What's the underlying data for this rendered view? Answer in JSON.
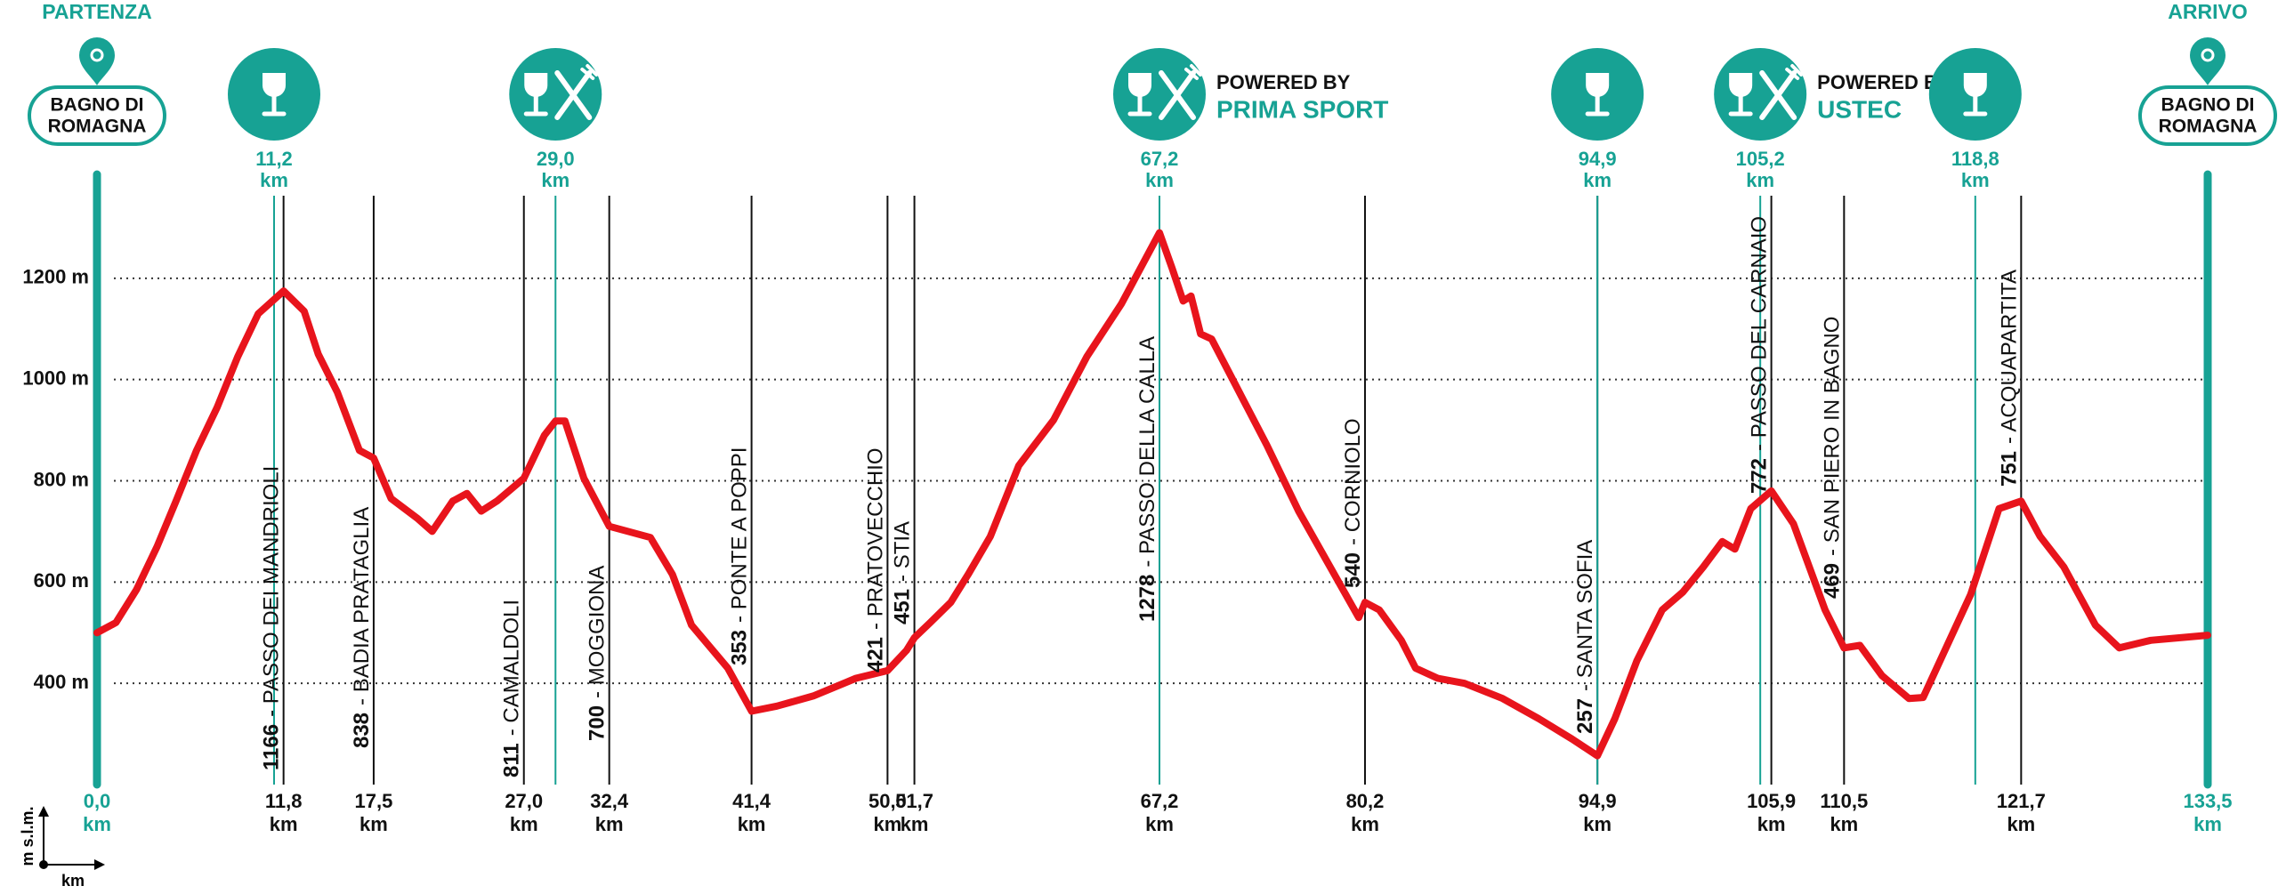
{
  "chart_data": {
    "type": "line",
    "color": "#e8141c",
    "accent": "#17a294",
    "xlim": [
      0,
      133.5
    ],
    "ylim": [
      200,
      1400
    ],
    "grid": true,
    "yticks": [
      {
        "value": 400,
        "label": "400 m"
      },
      {
        "value": 600,
        "label": "600 m"
      },
      {
        "value": 800,
        "label": "800 m"
      },
      {
        "value": 1000,
        "label": "1000 m"
      },
      {
        "value": 1200,
        "label": "1200 m"
      }
    ],
    "xticks": [
      {
        "value": 0,
        "label": "0,0"
      },
      {
        "value": 11.8,
        "label": "11,8"
      },
      {
        "value": 17.5,
        "label": "17,5"
      },
      {
        "value": 27.0,
        "label": "27,0"
      },
      {
        "value": 32.4,
        "label": "32,4"
      },
      {
        "value": 41.4,
        "label": "41,4"
      },
      {
        "value": 50.0,
        "label": "50,0"
      },
      {
        "value": 51.7,
        "label": "51,7"
      },
      {
        "value": 67.2,
        "label": "67,2"
      },
      {
        "value": 80.2,
        "label": "80,2"
      },
      {
        "value": 94.9,
        "label": "94,9"
      },
      {
        "value": 105.9,
        "label": "105,9"
      },
      {
        "value": 110.5,
        "label": "110,5"
      },
      {
        "value": 121.7,
        "label": "121,7"
      },
      {
        "value": 133.5,
        "label": "133,5"
      }
    ],
    "x_unit": "km",
    "y_axis_label": "m s.l.m.",
    "x_axis_label": "km",
    "start": {
      "label": "PARTENZA",
      "place": [
        "BAGNO DI",
        "ROMAGNA"
      ]
    },
    "finish": {
      "label": "ARRIVO",
      "place": [
        "BAGNO DI",
        "ROMAGNA"
      ]
    },
    "waypoints": [
      {
        "elevation": 1166,
        "name": "- PASSO DEI MANDRIOLI"
      },
      {
        "elevation": 838,
        "name": "- BADIA PRATAGLIA"
      },
      {
        "elevation": 811,
        "name": "- CAMALDOLI"
      },
      {
        "elevation": 700,
        "name": "- MOGGIONA"
      },
      {
        "elevation": 353,
        "name": "- PONTE A POPPI"
      },
      {
        "elevation": 421,
        "name": "- PRATOVECCHIO"
      },
      {
        "elevation": 451,
        "name": "- STIA"
      },
      {
        "elevation": 1278,
        "name": "- PASSO DELLA CALLA"
      },
      {
        "elevation": 540,
        "name": "- CORNIOLO"
      },
      {
        "elevation": 257,
        "name": "- SANTA SOFIA"
      },
      {
        "elevation": 772,
        "name": "- PASSO DEL CARNAIO"
      },
      {
        "elevation": 469,
        "name": "- SAN PIERO IN BAGNO"
      },
      {
        "elevation": 751,
        "name": "- ACQUAPARTITA"
      }
    ],
    "refreshments": [
      {
        "km": {
          "value": 11.2,
          "label": "11,2"
        },
        "food": false
      },
      {
        "km": {
          "value": 29.0,
          "label": "29,0"
        },
        "food": true
      },
      {
        "km": {
          "value": 67.2,
          "label": "67,2"
        },
        "food": true,
        "powered_by": "POWERED BY",
        "sponsor": "PRIMA SPORT"
      },
      {
        "km": {
          "value": 94.9,
          "label": "94,9"
        },
        "food": false
      },
      {
        "km": {
          "value": 105.2,
          "label": "105,2"
        },
        "food": true,
        "powered_by": "POWERED BY",
        "sponsor": "USTEC"
      },
      {
        "km": {
          "value": 118.8,
          "label": "118,8"
        },
        "food": false
      }
    ],
    "x": [
      0,
      1.2,
      2.5,
      3.8,
      5,
      6.3,
      7.6,
      8.9,
      10.2,
      11.8,
      13.1,
      14.0,
      15.2,
      16.6,
      17.5,
      18.6,
      20.3,
      21.2,
      22.5,
      23.4,
      24.3,
      25.3,
      27.0,
      28.3,
      29.0,
      29.6,
      30.8,
      32.4,
      35.0,
      36.4,
      37.6,
      39.9,
      41.4,
      43.0,
      45.3,
      48.0,
      50.0,
      51.2,
      51.7,
      52.7,
      54.0,
      55.1,
      56.5,
      58.3,
      60.5,
      62.6,
      64.8,
      67.2,
      68.0,
      68.7,
      69.2,
      69.8,
      70.5,
      72.0,
      74.0,
      76.0,
      79.8,
      80.2,
      81.1,
      82.5,
      83.4,
      84.8,
      86.5,
      88.9,
      91.2,
      93.3,
      94.9,
      96.0,
      97.4,
      99.0,
      100.3,
      101.6,
      102.8,
      103.6,
      104.6,
      105.9,
      107.3,
      109.3,
      110.5,
      111.5,
      112.9,
      114.6,
      115.5,
      116.8,
      118.5,
      120.3,
      121.7,
      122.9,
      124.4,
      126.4,
      127.9,
      129.9,
      133.5
    ],
    "values": [
      500,
      520,
      585,
      670,
      760,
      860,
      945,
      1045,
      1130,
      1175,
      1135,
      1050,
      975,
      860,
      845,
      765,
      725,
      700,
      760,
      775,
      740,
      760,
      805,
      890,
      918,
      918,
      805,
      710,
      688,
      615,
      515,
      430,
      345,
      355,
      375,
      410,
      425,
      465,
      490,
      520,
      560,
      615,
      690,
      830,
      920,
      1045,
      1150,
      1290,
      1220,
      1155,
      1165,
      1090,
      1080,
      990,
      870,
      740,
      530,
      560,
      545,
      485,
      430,
      410,
      400,
      370,
      330,
      290,
      257,
      330,
      445,
      545,
      580,
      630,
      680,
      665,
      745,
      780,
      715,
      545,
      470,
      475,
      415,
      370,
      372,
      460,
      575,
      745,
      760,
      690,
      630,
      515,
      470,
      485,
      495
    ]
  }
}
